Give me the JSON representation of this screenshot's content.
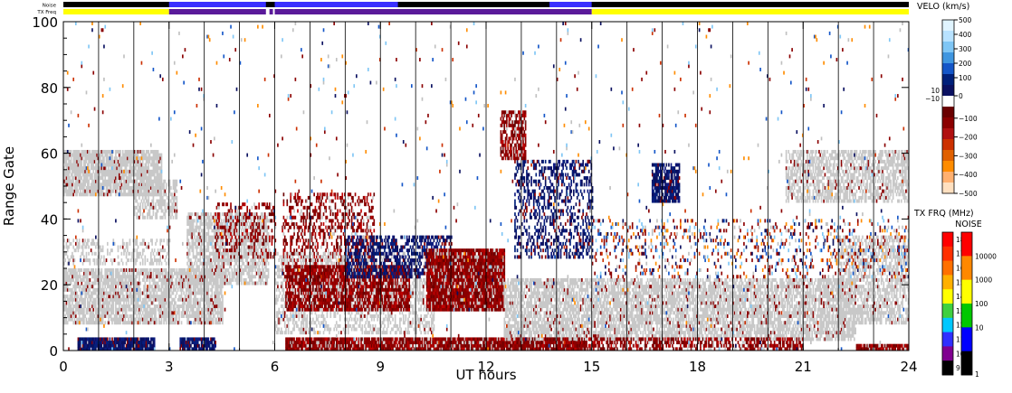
{
  "chart_data": {
    "type": "heatmap",
    "title": "",
    "xlabel": "UT hours",
    "ylabel": "Range Gate",
    "xlim": [
      0,
      24
    ],
    "ylim": [
      0,
      100
    ],
    "x_ticks": [
      "0",
      "3",
      "6",
      "9",
      "12",
      "15",
      "18",
      "21",
      "24"
    ],
    "y_ticks": [
      "0",
      "20",
      "40",
      "60",
      "80",
      "100"
    ],
    "grid": "vertical lines every hour",
    "strip_labels": {
      "noise": "Noise",
      "tx_freq": "TX Freq"
    },
    "tx_freq_segments": [
      {
        "start": 0.0,
        "end": 3.0,
        "color": "#ffff00"
      },
      {
        "start": 3.0,
        "end": 5.75,
        "color": "#5a1a9a"
      },
      {
        "start": 5.85,
        "end": 5.95,
        "color": "#5a1a9a"
      },
      {
        "start": 6.0,
        "end": 15.0,
        "color": "#5a1a9a"
      },
      {
        "start": 15.0,
        "end": 24.0,
        "color": "#ffff00"
      }
    ],
    "noise_segments": [
      {
        "start": 0.0,
        "end": 3.0,
        "color": "#000000"
      },
      {
        "start": 3.0,
        "end": 5.75,
        "color": "#3a30ff"
      },
      {
        "start": 6.0,
        "end": 9.5,
        "color": "#3a30ff"
      },
      {
        "start": 9.5,
        "end": 13.8,
        "color": "#000000"
      },
      {
        "start": 13.8,
        "end": 15.0,
        "color": "#3a30ff"
      },
      {
        "start": 15.0,
        "end": 24.0,
        "color": "#000000"
      }
    ],
    "velocity_scale": {
      "title": "VELO (km/s)",
      "tick_labels": [
        "500",
        "400",
        "300",
        "200",
        "100",
        "0",
        "−100",
        "−200",
        "−300",
        "−400",
        "−500"
      ],
      "inner_labels": [
        "10",
        "−10"
      ],
      "colors": [
        "#e0f4ff",
        "#b8e2ff",
        "#7fc6f5",
        "#3f96e0",
        "#1456c8",
        "#00207a",
        "#0a1060",
        "#ffffff",
        "#6a0000",
        "#8b0000",
        "#b01010",
        "#cc3000",
        "#e06000",
        "#ff8c00",
        "#ffb070",
        "#ffe0c0"
      ]
    },
    "freq_scale": {
      "title": "TX FRQ (MHz)",
      "tick_labels": [
        "18",
        "17",
        "16",
        "15",
        "14",
        "13",
        "12",
        "11",
        "10",
        "9"
      ],
      "colors": [
        "#ff0000",
        "#ff3000",
        "#ff7000",
        "#ffb000",
        "#ffff00",
        "#40d040",
        "#00c8ff",
        "#3030ff",
        "#800090",
        "#000000"
      ]
    },
    "noise_scale": {
      "title": "NOISE",
      "tick_labels": [
        "10000",
        "1000",
        "100",
        "10",
        "1"
      ],
      "colors": [
        "#ff0000",
        "#ff8800",
        "#ffff00",
        "#00c800",
        "#0000ff",
        "#000000"
      ]
    },
    "regions": [
      {
        "t0": 0.0,
        "t1": 2.8,
        "g0": 47,
        "g1": 61,
        "kind": "gray",
        "density": 0.85
      },
      {
        "t0": 2.0,
        "t1": 3.2,
        "g0": 40,
        "g1": 52,
        "kind": "gray",
        "density": 0.6
      },
      {
        "t0": 0.0,
        "t1": 4.5,
        "g0": 8,
        "g1": 25,
        "kind": "gray",
        "density": 0.75
      },
      {
        "t0": 0.0,
        "t1": 3.0,
        "g0": 26,
        "g1": 34,
        "kind": "gray",
        "density": 0.35
      },
      {
        "t0": 0.4,
        "t1": 2.6,
        "g0": 0,
        "g1": 4,
        "kind": "blue",
        "density": 0.95
      },
      {
        "t0": 3.3,
        "t1": 4.3,
        "g0": 0,
        "g1": 4,
        "kind": "blue",
        "density": 0.85
      },
      {
        "t0": 3.5,
        "t1": 5.8,
        "g0": 20,
        "g1": 42,
        "kind": "gray",
        "density": 0.7
      },
      {
        "t0": 4.3,
        "t1": 6.0,
        "g0": 28,
        "g1": 45,
        "kind": "red",
        "density": 0.3
      },
      {
        "t0": 6.2,
        "t1": 8.8,
        "g0": 24,
        "g1": 48,
        "kind": "red",
        "density": 0.35
      },
      {
        "t0": 6.0,
        "t1": 10.5,
        "g0": 5,
        "g1": 30,
        "kind": "gray",
        "density": 0.4
      },
      {
        "t0": 6.3,
        "t1": 9.8,
        "g0": 12,
        "g1": 26,
        "kind": "red",
        "density": 0.8
      },
      {
        "t0": 8.0,
        "t1": 11.0,
        "g0": 22,
        "g1": 35,
        "kind": "blue",
        "density": 0.5
      },
      {
        "t0": 10.3,
        "t1": 12.5,
        "g0": 12,
        "g1": 31,
        "kind": "red",
        "density": 0.95
      },
      {
        "t0": 6.3,
        "t1": 14.8,
        "g0": 0,
        "g1": 4,
        "kind": "red",
        "density": 0.9
      },
      {
        "t0": 12.8,
        "t1": 15.0,
        "g0": 28,
        "g1": 58,
        "kind": "blue",
        "density": 0.35
      },
      {
        "t0": 12.5,
        "t1": 22.5,
        "g0": 3,
        "g1": 22,
        "kind": "gray",
        "density": 0.7
      },
      {
        "t0": 12.8,
        "t1": 21.0,
        "g0": 0,
        "g1": 4,
        "kind": "red",
        "density": 0.55
      },
      {
        "t0": 16.7,
        "t1": 17.5,
        "g0": 45,
        "g1": 57,
        "kind": "blue",
        "density": 0.8
      },
      {
        "t0": 20.5,
        "t1": 24.0,
        "g0": 45,
        "g1": 61,
        "kind": "gray",
        "density": 0.6
      },
      {
        "t0": 22.0,
        "t1": 24.0,
        "g0": 8,
        "g1": 35,
        "kind": "gray",
        "density": 0.55
      },
      {
        "t0": 22.5,
        "t1": 24.0,
        "g0": 0,
        "g1": 2,
        "kind": "red",
        "density": 0.9
      },
      {
        "t0": 15.0,
        "t1": 24.0,
        "g0": 22,
        "g1": 40,
        "kind": "mixed",
        "density": 0.15
      },
      {
        "t0": 12.4,
        "t1": 13.1,
        "g0": 58,
        "g1": 73,
        "kind": "red",
        "density": 0.7
      },
      {
        "t0": 0.0,
        "t1": 24.0,
        "g0": 0,
        "g1": 100,
        "kind": "mixed",
        "density": 0.012
      }
    ]
  }
}
